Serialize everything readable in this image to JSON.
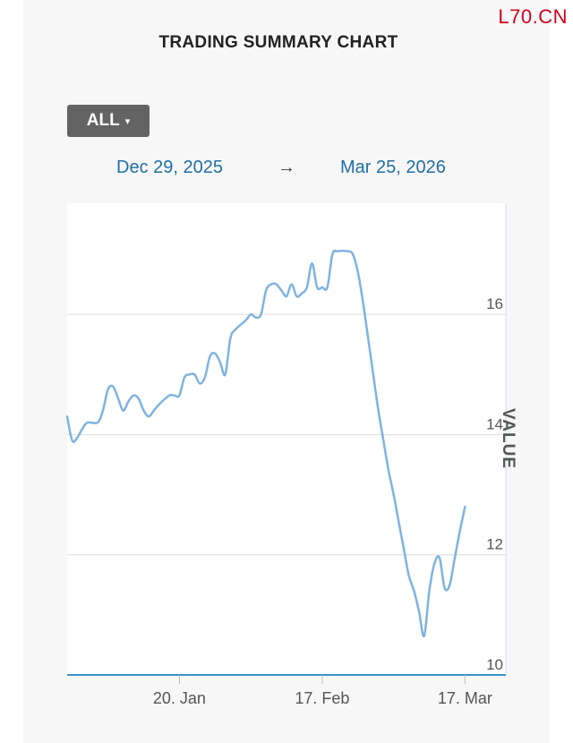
{
  "watermark": "L70.CN",
  "title": "TRADING SUMMARY CHART",
  "range_selector": {
    "label": "ALL",
    "caret": "▾"
  },
  "date_range": {
    "from": "Dec 29, 2025",
    "arrow": "→",
    "to": "Mar 25, 2026"
  },
  "colors": {
    "line": "#7fb3e0",
    "grid": "#e2e2e2",
    "axis": "#3a92c8"
  },
  "chart_data": {
    "type": "line",
    "title": "TRADING SUMMARY CHART",
    "ylabel": "VALUE",
    "xlabel": "",
    "x_range": [
      "2025-12-29",
      "2026-03-25"
    ],
    "ylim": [
      10,
      17.85
    ],
    "y_ticks": [
      10,
      12,
      14,
      16
    ],
    "x_ticks": [
      {
        "date": "2026-01-20",
        "label": "20. Jan"
      },
      {
        "date": "2026-02-17",
        "label": "17. Feb"
      },
      {
        "date": "2026-03-17",
        "label": "17. Mar"
      }
    ],
    "grid": true,
    "legend": "none",
    "series": [
      {
        "values": [
          [
            "2025-12-29",
            14.3
          ],
          [
            "2025-12-30",
            13.9
          ],
          [
            "2025-12-31",
            13.95
          ],
          [
            "2026-01-01",
            14.1
          ],
          [
            "2026-01-02",
            14.2
          ],
          [
            "2026-01-04",
            14.2
          ],
          [
            "2026-01-05",
            14.4
          ],
          [
            "2026-01-06",
            14.75
          ],
          [
            "2026-01-07",
            14.8
          ],
          [
            "2026-01-08",
            14.6
          ],
          [
            "2026-01-09",
            14.4
          ],
          [
            "2026-01-10",
            14.55
          ],
          [
            "2026-01-11",
            14.65
          ],
          [
            "2026-01-12",
            14.6
          ],
          [
            "2026-01-13",
            14.4
          ],
          [
            "2026-01-14",
            14.3
          ],
          [
            "2026-01-15",
            14.4
          ],
          [
            "2026-01-16",
            14.5
          ],
          [
            "2026-01-18",
            14.65
          ],
          [
            "2026-01-19",
            14.65
          ],
          [
            "2026-01-20",
            14.65
          ],
          [
            "2026-01-21",
            14.95
          ],
          [
            "2026-01-22",
            15.0
          ],
          [
            "2026-01-23",
            15.0
          ],
          [
            "2026-01-24",
            14.85
          ],
          [
            "2026-01-25",
            14.95
          ],
          [
            "2026-01-26",
            15.3
          ],
          [
            "2026-01-27",
            15.35
          ],
          [
            "2026-01-28",
            15.2
          ],
          [
            "2026-01-29",
            15.0
          ],
          [
            "2026-01-30",
            15.6
          ],
          [
            "2026-01-31",
            15.75
          ],
          [
            "2026-02-02",
            15.9
          ],
          [
            "2026-02-03",
            16.0
          ],
          [
            "2026-02-04",
            15.95
          ],
          [
            "2026-02-05",
            16.0
          ],
          [
            "2026-02-06",
            16.4
          ],
          [
            "2026-02-07",
            16.5
          ],
          [
            "2026-02-08",
            16.5
          ],
          [
            "2026-02-09",
            16.4
          ],
          [
            "2026-02-10",
            16.3
          ],
          [
            "2026-02-11",
            16.5
          ],
          [
            "2026-02-12",
            16.3
          ],
          [
            "2026-02-13",
            16.35
          ],
          [
            "2026-02-14",
            16.45
          ],
          [
            "2026-02-15",
            16.85
          ],
          [
            "2026-02-16",
            16.45
          ],
          [
            "2026-02-17",
            16.45
          ],
          [
            "2026-02-18",
            16.45
          ],
          [
            "2026-02-19",
            17.0
          ],
          [
            "2026-02-20",
            17.05
          ],
          [
            "2026-02-22",
            17.05
          ],
          [
            "2026-02-23",
            17.0
          ],
          [
            "2026-02-24",
            16.7
          ],
          [
            "2026-02-25",
            16.2
          ],
          [
            "2026-02-26",
            15.6
          ],
          [
            "2026-02-27",
            15.0
          ],
          [
            "2026-02-28",
            14.4
          ],
          [
            "2026-03-01",
            13.9
          ],
          [
            "2026-03-02",
            13.4
          ],
          [
            "2026-03-03",
            13.0
          ],
          [
            "2026-03-04",
            12.55
          ],
          [
            "2026-03-05",
            12.1
          ],
          [
            "2026-03-06",
            11.65
          ],
          [
            "2026-03-07",
            11.4
          ],
          [
            "2026-03-08",
            11.05
          ],
          [
            "2026-03-09",
            10.65
          ],
          [
            "2026-03-10",
            11.4
          ],
          [
            "2026-03-11",
            11.85
          ],
          [
            "2026-03-12",
            11.95
          ],
          [
            "2026-03-13",
            11.45
          ],
          [
            "2026-03-14",
            11.5
          ],
          [
            "2026-03-15",
            11.95
          ],
          [
            "2026-03-16",
            12.4
          ],
          [
            "2026-03-17",
            12.8
          ]
        ]
      }
    ]
  }
}
